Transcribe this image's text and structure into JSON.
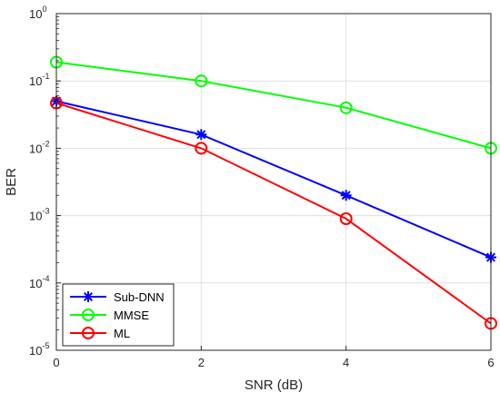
{
  "chart_data": {
    "type": "line",
    "xlabel": "SNR (dB)",
    "ylabel": "BER",
    "xlim": [
      0,
      6
    ],
    "ylim": [
      1e-05,
      1
    ],
    "yscale": "log",
    "grid": true,
    "legend_position": "bottom-left",
    "x": [
      0,
      2,
      4,
      6
    ],
    "x_ticks": [
      "0",
      "2",
      "4",
      "6"
    ],
    "y_ticks": [
      {
        "base": "10",
        "exp": "0"
      },
      {
        "base": "10",
        "exp": "-1"
      },
      {
        "base": "10",
        "exp": "-2"
      },
      {
        "base": "10",
        "exp": "-3"
      },
      {
        "base": "10",
        "exp": "-4"
      },
      {
        "base": "10",
        "exp": "-5"
      }
    ],
    "series": [
      {
        "name": "Sub-DNN",
        "values": [
          0.05,
          0.016,
          0.002,
          0.00024
        ],
        "color": "#0000ff",
        "marker": "asterisk"
      },
      {
        "name": "MMSE",
        "values": [
          0.19,
          0.1,
          0.04,
          0.01
        ],
        "color": "#00ff00",
        "marker": "circle"
      },
      {
        "name": "ML",
        "values": [
          0.047,
          0.01,
          0.0009,
          2.5e-05
        ],
        "color": "#ff0000",
        "marker": "circle"
      }
    ]
  }
}
